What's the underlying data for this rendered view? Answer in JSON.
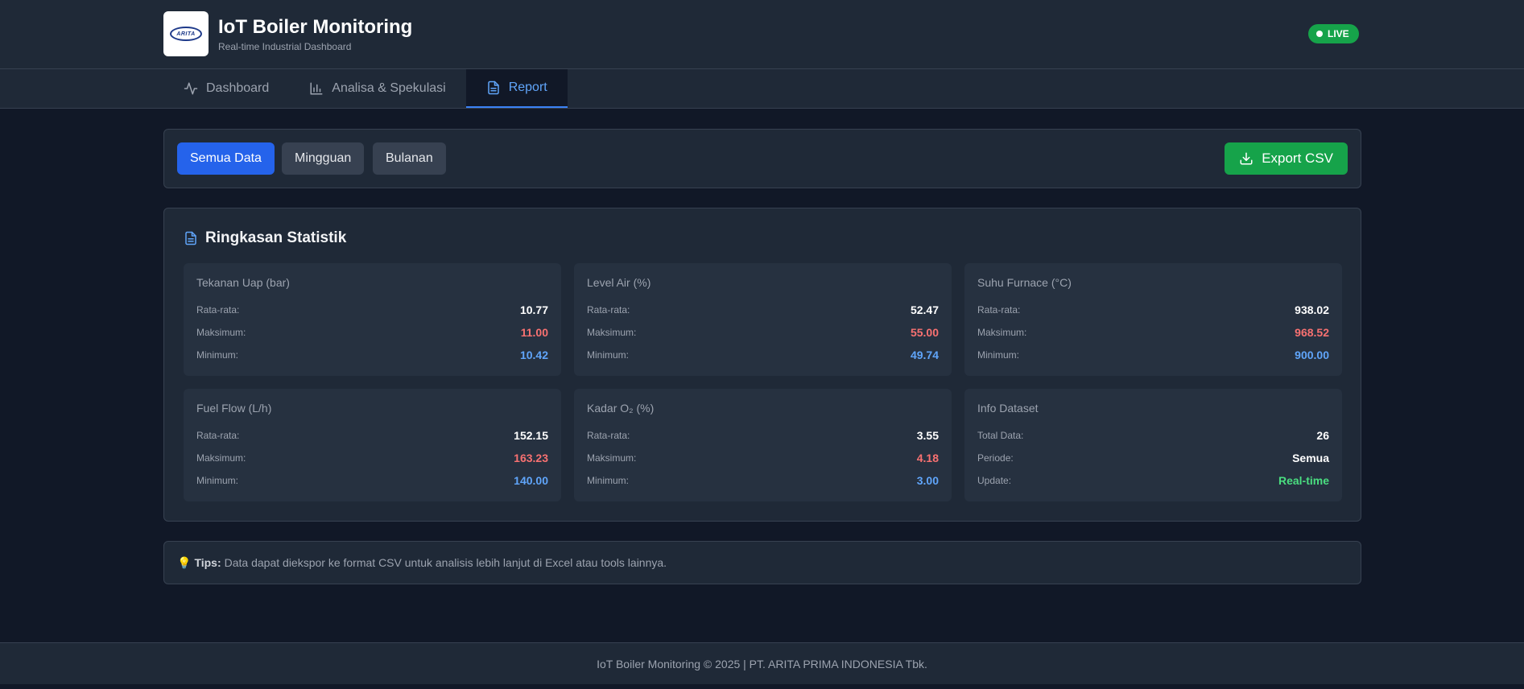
{
  "header": {
    "logo_text": "ARITA",
    "title": "IoT Boiler Monitoring",
    "subtitle": "Real-time Industrial Dashboard",
    "live_badge": "LIVE",
    "live_color": "#16a34a"
  },
  "tabs": [
    {
      "label": "Dashboard",
      "icon": "activity-icon",
      "active": false
    },
    {
      "label": "Analisa & Spekulasi",
      "icon": "bar-chart-icon",
      "active": false
    },
    {
      "label": "Report",
      "icon": "document-icon",
      "active": true
    }
  ],
  "filters": {
    "all": "Semua Data",
    "weekly": "Mingguan",
    "monthly": "Bulanan",
    "selected": "Semua Data",
    "export_label": "Export CSV"
  },
  "stats": {
    "title": "Ringkasan Statistik",
    "cards": [
      {
        "title": "Tekanan Uap (bar)",
        "rows": [
          {
            "label": "Rata-rata:",
            "value": "10.77"
          },
          {
            "label": "Maksimum:",
            "value": "11.00"
          },
          {
            "label": "Minimum:",
            "value": "10.42"
          }
        ]
      },
      {
        "title": "Level Air (%)",
        "rows": [
          {
            "label": "Rata-rata:",
            "value": "52.47"
          },
          {
            "label": "Maksimum:",
            "value": "55.00"
          },
          {
            "label": "Minimum:",
            "value": "49.74"
          }
        ]
      },
      {
        "title": "Suhu Furnace (°C)",
        "rows": [
          {
            "label": "Rata-rata:",
            "value": "938.02"
          },
          {
            "label": "Maksimum:",
            "value": "968.52"
          },
          {
            "label": "Minimum:",
            "value": "900.00"
          }
        ]
      },
      {
        "title": "Fuel Flow (L/h)",
        "rows": [
          {
            "label": "Rata-rata:",
            "value": "152.15"
          },
          {
            "label": "Maksimum:",
            "value": "163.23"
          },
          {
            "label": "Minimum:",
            "value": "140.00"
          }
        ]
      },
      {
        "title": "Kadar O₂ (%)",
        "rows": [
          {
            "label": "Rata-rata:",
            "value": "3.55"
          },
          {
            "label": "Maksimum:",
            "value": "4.18"
          },
          {
            "label": "Minimum:",
            "value": "3.00"
          }
        ]
      },
      {
        "title": "Info Dataset",
        "rows": [
          {
            "label": "Total Data:",
            "value": "26"
          },
          {
            "label": "Periode:",
            "value": "Semua"
          },
          {
            "label": "Update:",
            "value": "Real-time"
          }
        ]
      }
    ]
  },
  "tips": {
    "icon": "lightbulb-icon",
    "label": "Tips:",
    "text": "Data dapat diekspor ke format CSV untuk analisis lebih lanjut di Excel atau tools lainnya."
  },
  "footer": {
    "text": "IoT Boiler Monitoring © 2025 | PT. ARITA PRIMA INDONESIA Tbk."
  }
}
